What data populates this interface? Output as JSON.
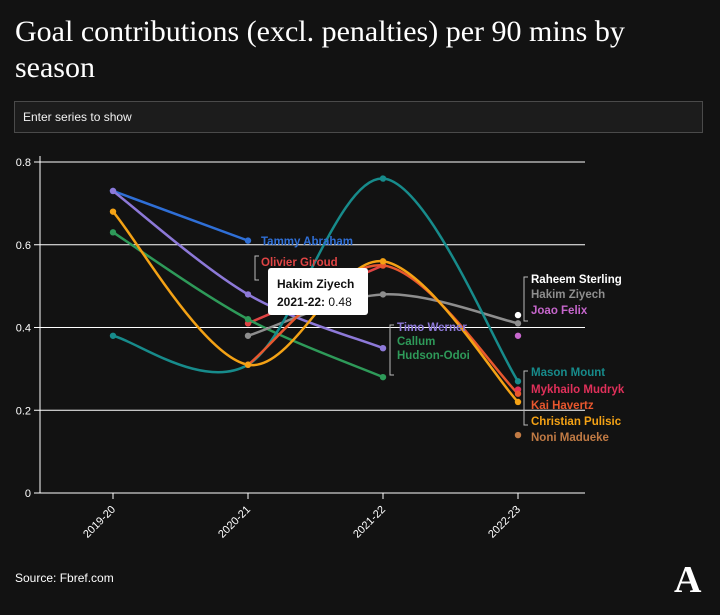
{
  "page": {
    "title": "Goal contributions (excl. penalties) per 90 mins by season",
    "search_placeholder": "Enter series to show",
    "source": "Source: Fbref.com",
    "logo": "A"
  },
  "tooltip": {
    "player": "Hakim Ziyech",
    "season": "2021-22:",
    "value": "0.48"
  },
  "chart_data": {
    "type": "line",
    "categories": [
      "2019-20",
      "2020-21",
      "2021-22",
      "2022-23"
    ],
    "ylim": [
      0,
      0.8
    ],
    "yticks": [
      "0",
      "0.2",
      "0.4",
      "0.6",
      "0.8"
    ],
    "xlabel": "",
    "ylabel": "",
    "grid": true,
    "series": [
      {
        "name": "Tammy Abraham",
        "color": "#2f6fd6",
        "values": [
          0.73,
          0.61,
          null,
          null
        ]
      },
      {
        "name": "Olivier Giroud",
        "color": "#e04444",
        "values": [
          null,
          0.41,
          0.55,
          null
        ]
      },
      {
        "name": "Timo Werner",
        "color": "#8d79d8",
        "values": [
          0.73,
          0.48,
          0.35,
          null
        ]
      },
      {
        "name": "Callum Hudson-Odoi",
        "color": "#2e9a59",
        "values": [
          0.63,
          0.42,
          0.28,
          null
        ]
      },
      {
        "name": "Hakim Ziyech",
        "color": "#8e8e8e",
        "values": [
          null,
          0.38,
          0.48,
          0.41
        ]
      },
      {
        "name": "Mason Mount",
        "color": "#178b8b",
        "values": [
          0.38,
          0.31,
          0.76,
          0.27
        ]
      },
      {
        "name": "Mykhailo Mudryk",
        "color": "#e0305a",
        "values": [
          null,
          null,
          null,
          0.25
        ]
      },
      {
        "name": "Kai Havertz",
        "color": "#e8572e",
        "values": [
          null,
          0.31,
          0.55,
          0.24
        ]
      },
      {
        "name": "Christian Pulisic",
        "color": "#f4a215",
        "values": [
          0.68,
          0.31,
          0.56,
          0.22
        ]
      },
      {
        "name": "Noni Madueke",
        "color": "#c07a44",
        "values": [
          null,
          null,
          null,
          0.14
        ]
      },
      {
        "name": "Raheem Sterling",
        "color": "#ffffff",
        "values": [
          null,
          null,
          null,
          0.43
        ]
      },
      {
        "name": "Joao Felix",
        "color": "#c666cc",
        "values": [
          null,
          null,
          null,
          0.38
        ]
      }
    ],
    "labels": [
      {
        "text": "Tammy Abraham",
        "series": "Tammy Abraham"
      },
      {
        "text": "Olivier Giroud",
        "series": "Olivier Giroud"
      },
      {
        "text": "Timo Werner",
        "series": "Timo Werner"
      },
      {
        "text": "Callum",
        "series": "Callum Hudson-Odoi"
      },
      {
        "text": "Hudson-Odoi",
        "series": "Callum Hudson-Odoi"
      },
      {
        "text": "Raheem Sterling",
        "series": "Raheem Sterling"
      },
      {
        "text": "Hakim Ziyech",
        "series": "Hakim Ziyech"
      },
      {
        "text": "Joao Felix",
        "series": "Joao Felix"
      },
      {
        "text": "Mason Mount",
        "series": "Mason Mount"
      },
      {
        "text": "Mykhailo Mudryk",
        "series": "Mykhailo Mudryk"
      },
      {
        "text": "Kai Havertz",
        "series": "Kai Havertz"
      },
      {
        "text": "Christian Pulisic",
        "series": "Christian Pulisic"
      },
      {
        "text": "Noni Madueke",
        "series": "Noni Madueke"
      }
    ]
  }
}
